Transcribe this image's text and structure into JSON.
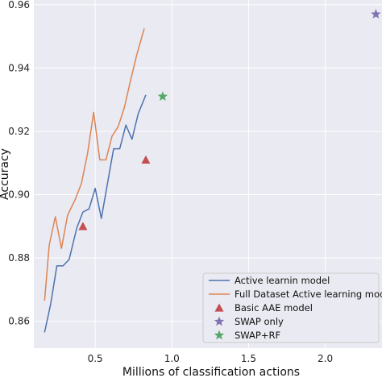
{
  "chart_data": {
    "type": "line",
    "xlabel": "Millions of classification actions",
    "ylabel": "Accuracy",
    "xlim": [
      0.1,
      2.37
    ],
    "ylim": [
      0.8515,
      0.9615
    ],
    "xticks": [
      0.5,
      1.0,
      1.5,
      2.0
    ],
    "xtick_labels": [
      "0.5",
      "1.0",
      "1.5",
      "2.0"
    ],
    "yticks": [
      0.86,
      0.88,
      0.9,
      0.92,
      0.94,
      0.96
    ],
    "ytick_labels": [
      "0.86",
      "0.88",
      "0.90",
      "0.92",
      "0.94",
      "0.96"
    ],
    "grid": true,
    "legend_position": "bottom-right",
    "series": [
      {
        "name": "Active learnin model",
        "kind": "line",
        "color": "#4c72b0",
        "x": [
          0.17,
          0.21,
          0.25,
          0.29,
          0.33,
          0.38,
          0.42,
          0.46,
          0.5,
          0.54,
          0.58,
          0.62,
          0.66,
          0.7,
          0.74,
          0.78,
          0.83
        ],
        "y": [
          0.8565,
          0.8655,
          0.8775,
          0.8775,
          0.8795,
          0.8895,
          0.8945,
          0.8955,
          0.902,
          0.8925,
          0.9035,
          0.9145,
          0.9145,
          0.922,
          0.9175,
          0.9255,
          0.9315
        ]
      },
      {
        "name": "Full Dataset Active learning model",
        "kind": "line",
        "color": "#dd8452",
        "x": [
          0.17,
          0.2,
          0.24,
          0.28,
          0.32,
          0.37,
          0.41,
          0.45,
          0.49,
          0.53,
          0.57,
          0.61,
          0.65,
          0.69,
          0.73,
          0.77,
          0.82
        ],
        "y": [
          0.8665,
          0.884,
          0.893,
          0.883,
          0.8935,
          0.8985,
          0.9035,
          0.913,
          0.926,
          0.911,
          0.911,
          0.9185,
          0.9215,
          0.9275,
          0.936,
          0.944,
          0.9525
        ]
      },
      {
        "name": "Basic AAE model",
        "kind": "triangle",
        "color": "#c44e52",
        "x": [
          0.42,
          0.83
        ],
        "y": [
          0.89,
          0.911
        ]
      },
      {
        "name": "SWAP only",
        "kind": "star",
        "color": "#8172b3",
        "x": [
          2.33
        ],
        "y": [
          0.957
        ]
      },
      {
        "name": "SWAP+RF",
        "kind": "star",
        "color": "#55a868",
        "x": [
          0.94
        ],
        "y": [
          0.931
        ]
      }
    ]
  }
}
